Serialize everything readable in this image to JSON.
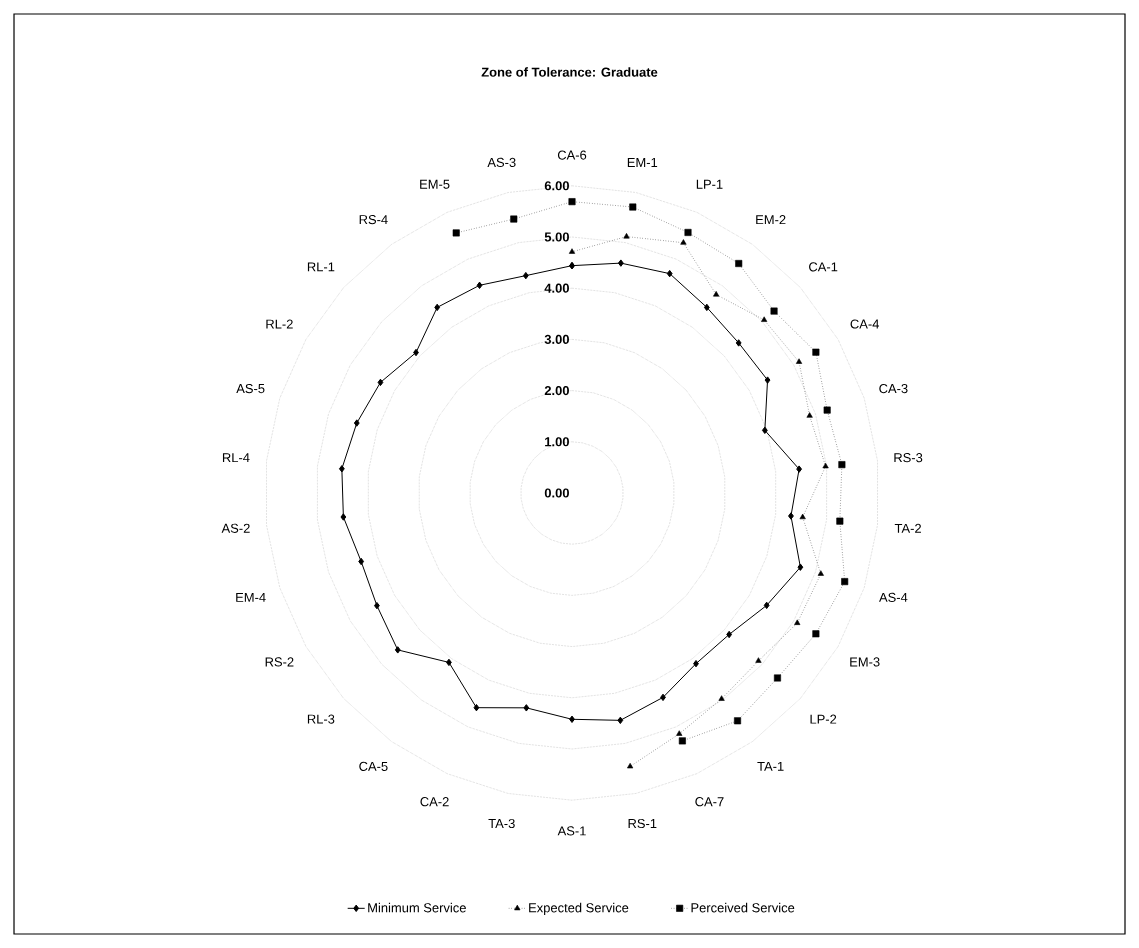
{
  "chart_data": {
    "type": "radar",
    "title": "Zone of Tolerance: Graduate",
    "categories": [
      "CA-6",
      "EM-1",
      "LP-1",
      "EM-2",
      "CA-1",
      "CA-4",
      "CA-3",
      "RS-3",
      "TA-2",
      "AS-4",
      "EM-3",
      "LP-2",
      "TA-1",
      "CA-7",
      "RS-1",
      "AS-1",
      "TA-3",
      "CA-2",
      "CA-5",
      "RL-3",
      "RS-2",
      "EM-4",
      "AS-2",
      "RL-4",
      "AS-5",
      "RL-2",
      "RL-1",
      "RS-4",
      "EM-5",
      "AS-3"
    ],
    "series": [
      {
        "name": "Minimum Service",
        "color": "#000000",
        "marker": "diamond",
        "line_style": "solid",
        "values": [
          4.44,
          4.59,
          4.69,
          4.48,
          4.38,
          4.41,
          3.96,
          4.46,
          4.3,
          4.69,
          4.39,
          4.13,
          4.12,
          4.37,
          4.54,
          4.42,
          4.29,
          4.59,
          4.09,
          4.58,
          4.4,
          4.33,
          4.49,
          4.52,
          4.42,
          4.32,
          4.1,
          4.48,
          4.44,
          4.34
        ]
      },
      {
        "name": "Expected Service",
        "color": "#000000",
        "marker": "triangle",
        "line_style": "dotted",
        "values": [
          4.71,
          5.12,
          5.35,
          4.79,
          5.05,
          5.12,
          4.88,
          4.98,
          4.53,
          5.11,
          5.08,
          4.9,
          4.97,
          5.15,
          5.46,
          null,
          null,
          null,
          null,
          null,
          null,
          null,
          null,
          null,
          null,
          null,
          null,
          null,
          null,
          null
        ]
      },
      {
        "name": "Perceived Service",
        "color": "#000000",
        "marker": "square",
        "line_style": "dotted",
        "values": [
          5.69,
          5.71,
          5.57,
          5.54,
          5.31,
          5.5,
          5.24,
          5.3,
          5.26,
          5.6,
          5.5,
          5.4,
          5.5,
          5.3,
          null,
          null,
          null,
          null,
          null,
          null,
          null,
          null,
          null,
          null,
          null,
          null,
          null,
          null,
          5.56,
          5.47
        ]
      }
    ],
    "ylim": [
      0,
      6
    ],
    "yticks": [
      {
        "value": 0,
        "label": "0.00"
      },
      {
        "value": 1,
        "label": "1.00"
      },
      {
        "value": 2,
        "label": "2.00"
      },
      {
        "value": 3,
        "label": "3.00"
      },
      {
        "value": 4,
        "label": "4.00"
      },
      {
        "value": 5,
        "label": "5.00"
      },
      {
        "value": 6,
        "label": "6.00"
      }
    ],
    "grid": true,
    "legend": "bottom"
  }
}
